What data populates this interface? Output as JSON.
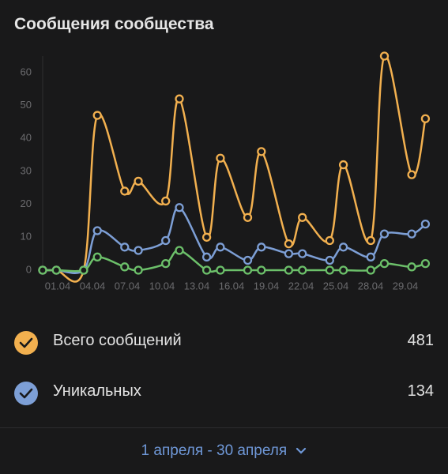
{
  "header": {
    "title": "Сообщения сообщества"
  },
  "chart_data": {
    "type": "line",
    "x_labels": [
      "01.04",
      "04.04",
      "07.04",
      "10.04",
      "13.04",
      "16.04",
      "19.04",
      "22.04",
      "25.04",
      "28.04",
      "29.04"
    ],
    "series": [
      {
        "name": "Всего сообщений",
        "color": "#f2b04f",
        "values": [
          0,
          0,
          0,
          47,
          24,
          27,
          21,
          52,
          10,
          34,
          16,
          36,
          8,
          16,
          9,
          32,
          9,
          65,
          29,
          46
        ]
      },
      {
        "name": "Уникальных",
        "color": "#7d9fd6",
        "values": [
          0,
          0,
          0,
          12,
          7,
          6,
          9,
          19,
          4,
          7,
          3,
          7,
          5,
          5,
          3,
          7,
          4,
          11,
          11,
          14
        ]
      },
      {
        "color": "#6cc06a",
        "values": [
          0,
          0,
          0,
          4,
          1,
          0,
          2,
          6,
          0,
          0,
          0,
          0,
          0,
          0,
          0,
          0,
          0,
          2,
          1,
          2
        ]
      }
    ],
    "ylim": [
      0,
      65
    ],
    "yticks": [
      0,
      10,
      20,
      30,
      40,
      50,
      60
    ]
  },
  "legend": {
    "totals": [
      "481",
      "134"
    ]
  },
  "footer": {
    "period": "1 апреля - 30 апреля"
  }
}
